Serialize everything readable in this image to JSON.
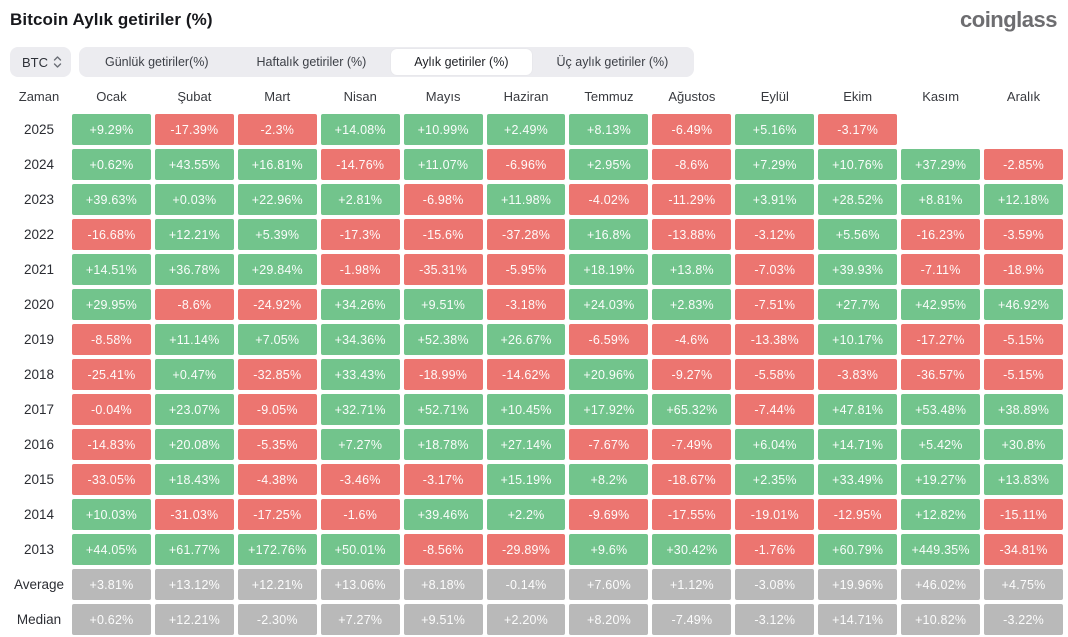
{
  "header": {
    "title": "Bitcoin Aylık getiriler (%)",
    "logo": "coinglass"
  },
  "controls": {
    "coin_selector": {
      "value": "BTC",
      "icon": "up-down-chevron-icon"
    },
    "tabs": [
      {
        "label": "Günlük getiriler(%)",
        "selected": false
      },
      {
        "label": "Haftalık getiriler (%)",
        "selected": false
      },
      {
        "label": "Aylık getiriler (%)",
        "selected": true
      },
      {
        "label": "Üç aylık getiriler (%)",
        "selected": false
      }
    ]
  },
  "colors": {
    "positive": "#72c48c",
    "negative": "#ec7570",
    "summary": "#b9b9b9"
  },
  "chart_data": {
    "type": "heatmap",
    "title": "Bitcoin Aylık getiriler (%)",
    "value_unit": "percent",
    "color_rule": "green = positive monthly return, red = negative monthly return, gray = summary rows",
    "columns": [
      "Zaman",
      "Ocak",
      "Şubat",
      "Mart",
      "Nisan",
      "Mayıs",
      "Haziran",
      "Temmuz",
      "Ağustos",
      "Eylül",
      "Ekim",
      "Kasım",
      "Aralık"
    ],
    "rows": [
      {
        "label": "2025",
        "summary": false,
        "values": [
          "+9.29%",
          "-17.39%",
          "-2.3%",
          "+14.08%",
          "+10.99%",
          "+2.49%",
          "+8.13%",
          "-6.49%",
          "+5.16%",
          "-3.17%",
          "",
          ""
        ]
      },
      {
        "label": "2024",
        "summary": false,
        "values": [
          "+0.62%",
          "+43.55%",
          "+16.81%",
          "-14.76%",
          "+11.07%",
          "-6.96%",
          "+2.95%",
          "-8.6%",
          "+7.29%",
          "+10.76%",
          "+37.29%",
          "-2.85%"
        ]
      },
      {
        "label": "2023",
        "summary": false,
        "values": [
          "+39.63%",
          "+0.03%",
          "+22.96%",
          "+2.81%",
          "-6.98%",
          "+11.98%",
          "-4.02%",
          "-11.29%",
          "+3.91%",
          "+28.52%",
          "+8.81%",
          "+12.18%"
        ]
      },
      {
        "label": "2022",
        "summary": false,
        "values": [
          "-16.68%",
          "+12.21%",
          "+5.39%",
          "-17.3%",
          "-15.6%",
          "-37.28%",
          "+16.8%",
          "-13.88%",
          "-3.12%",
          "+5.56%",
          "-16.23%",
          "-3.59%"
        ]
      },
      {
        "label": "2021",
        "summary": false,
        "values": [
          "+14.51%",
          "+36.78%",
          "+29.84%",
          "-1.98%",
          "-35.31%",
          "-5.95%",
          "+18.19%",
          "+13.8%",
          "-7.03%",
          "+39.93%",
          "-7.11%",
          "-18.9%"
        ]
      },
      {
        "label": "2020",
        "summary": false,
        "values": [
          "+29.95%",
          "-8.6%",
          "-24.92%",
          "+34.26%",
          "+9.51%",
          "-3.18%",
          "+24.03%",
          "+2.83%",
          "-7.51%",
          "+27.7%",
          "+42.95%",
          "+46.92%"
        ]
      },
      {
        "label": "2019",
        "summary": false,
        "values": [
          "-8.58%",
          "+11.14%",
          "+7.05%",
          "+34.36%",
          "+52.38%",
          "+26.67%",
          "-6.59%",
          "-4.6%",
          "-13.38%",
          "+10.17%",
          "-17.27%",
          "-5.15%"
        ]
      },
      {
        "label": "2018",
        "summary": false,
        "values": [
          "-25.41%",
          "+0.47%",
          "-32.85%",
          "+33.43%",
          "-18.99%",
          "-14.62%",
          "+20.96%",
          "-9.27%",
          "-5.58%",
          "-3.83%",
          "-36.57%",
          "-5.15%"
        ]
      },
      {
        "label": "2017",
        "summary": false,
        "values": [
          "-0.04%",
          "+23.07%",
          "-9.05%",
          "+32.71%",
          "+52.71%",
          "+10.45%",
          "+17.92%",
          "+65.32%",
          "-7.44%",
          "+47.81%",
          "+53.48%",
          "+38.89%"
        ]
      },
      {
        "label": "2016",
        "summary": false,
        "values": [
          "-14.83%",
          "+20.08%",
          "-5.35%",
          "+7.27%",
          "+18.78%",
          "+27.14%",
          "-7.67%",
          "-7.49%",
          "+6.04%",
          "+14.71%",
          "+5.42%",
          "+30.8%"
        ]
      },
      {
        "label": "2015",
        "summary": false,
        "values": [
          "-33.05%",
          "+18.43%",
          "-4.38%",
          "-3.46%",
          "-3.17%",
          "+15.19%",
          "+8.2%",
          "-18.67%",
          "+2.35%",
          "+33.49%",
          "+19.27%",
          "+13.83%"
        ]
      },
      {
        "label": "2014",
        "summary": false,
        "values": [
          "+10.03%",
          "-31.03%",
          "-17.25%",
          "-1.6%",
          "+39.46%",
          "+2.2%",
          "-9.69%",
          "-17.55%",
          "-19.01%",
          "-12.95%",
          "+12.82%",
          "-15.11%"
        ]
      },
      {
        "label": "2013",
        "summary": false,
        "values": [
          "+44.05%",
          "+61.77%",
          "+172.76%",
          "+50.01%",
          "-8.56%",
          "-29.89%",
          "+9.6%",
          "+30.42%",
          "-1.76%",
          "+60.79%",
          "+449.35%",
          "-34.81%"
        ]
      },
      {
        "label": "Average",
        "summary": true,
        "values": [
          "+3.81%",
          "+13.12%",
          "+12.21%",
          "+13.06%",
          "+8.18%",
          "-0.14%",
          "+7.60%",
          "+1.12%",
          "-3.08%",
          "+19.96%",
          "+46.02%",
          "+4.75%"
        ]
      },
      {
        "label": "Median",
        "summary": true,
        "values": [
          "+0.62%",
          "+12.21%",
          "-2.30%",
          "+7.27%",
          "+9.51%",
          "+2.20%",
          "+8.20%",
          "-7.49%",
          "-3.12%",
          "+14.71%",
          "+10.82%",
          "-3.22%"
        ]
      }
    ]
  }
}
